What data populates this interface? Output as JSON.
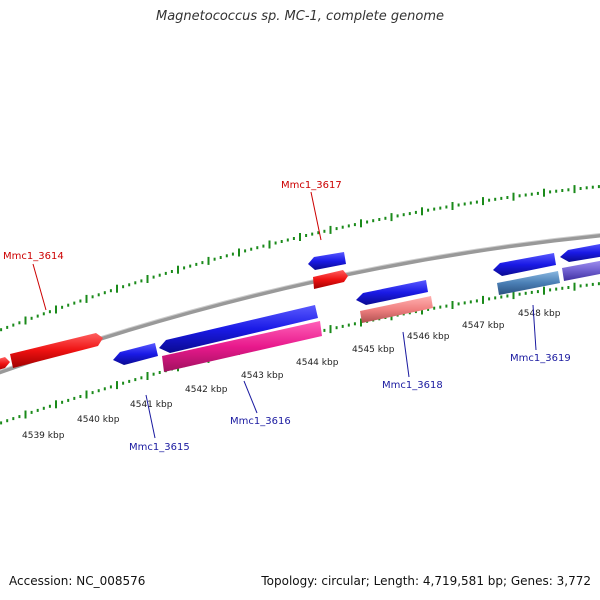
{
  "title": "Magnetococcus sp. MC-1, complete genome",
  "footer": {
    "accession": "Accession: NC_008576",
    "summary": "Topology: circular; Length: 4,719,581 bp; Genes: 3,772"
  },
  "colors": {
    "backbone": "#888888",
    "tick": "#1a8a1a",
    "forward_label": "#cc0000",
    "reverse_label": "#1a1aa0",
    "blue_cds": "#1a1ae6",
    "red_cds": "#ee1111",
    "magenta_cds": "#e8198c",
    "pink_cds": "#f08080",
    "steel_cds": "#4a7fb5",
    "purple_cds": "#7060d0"
  },
  "scale": {
    "tick_labels": [
      "4539 kbp",
      "4540 kbp",
      "4541 kbp",
      "4542 kbp",
      "4543 kbp",
      "4544 kbp",
      "4545 kbp",
      "4546 kbp",
      "4547 kbp",
      "4548 kbp"
    ]
  },
  "gene_labels": [
    {
      "text": "Mmc1_3614",
      "strand": "forward"
    },
    {
      "text": "Mmc1_3617",
      "strand": "forward"
    },
    {
      "text": "Mmc1_3615",
      "strand": "reverse"
    },
    {
      "text": "Mmc1_3616",
      "strand": "reverse"
    },
    {
      "text": "Mmc1_3618",
      "strand": "reverse"
    },
    {
      "text": "Mmc1_3619",
      "strand": "reverse"
    }
  ]
}
